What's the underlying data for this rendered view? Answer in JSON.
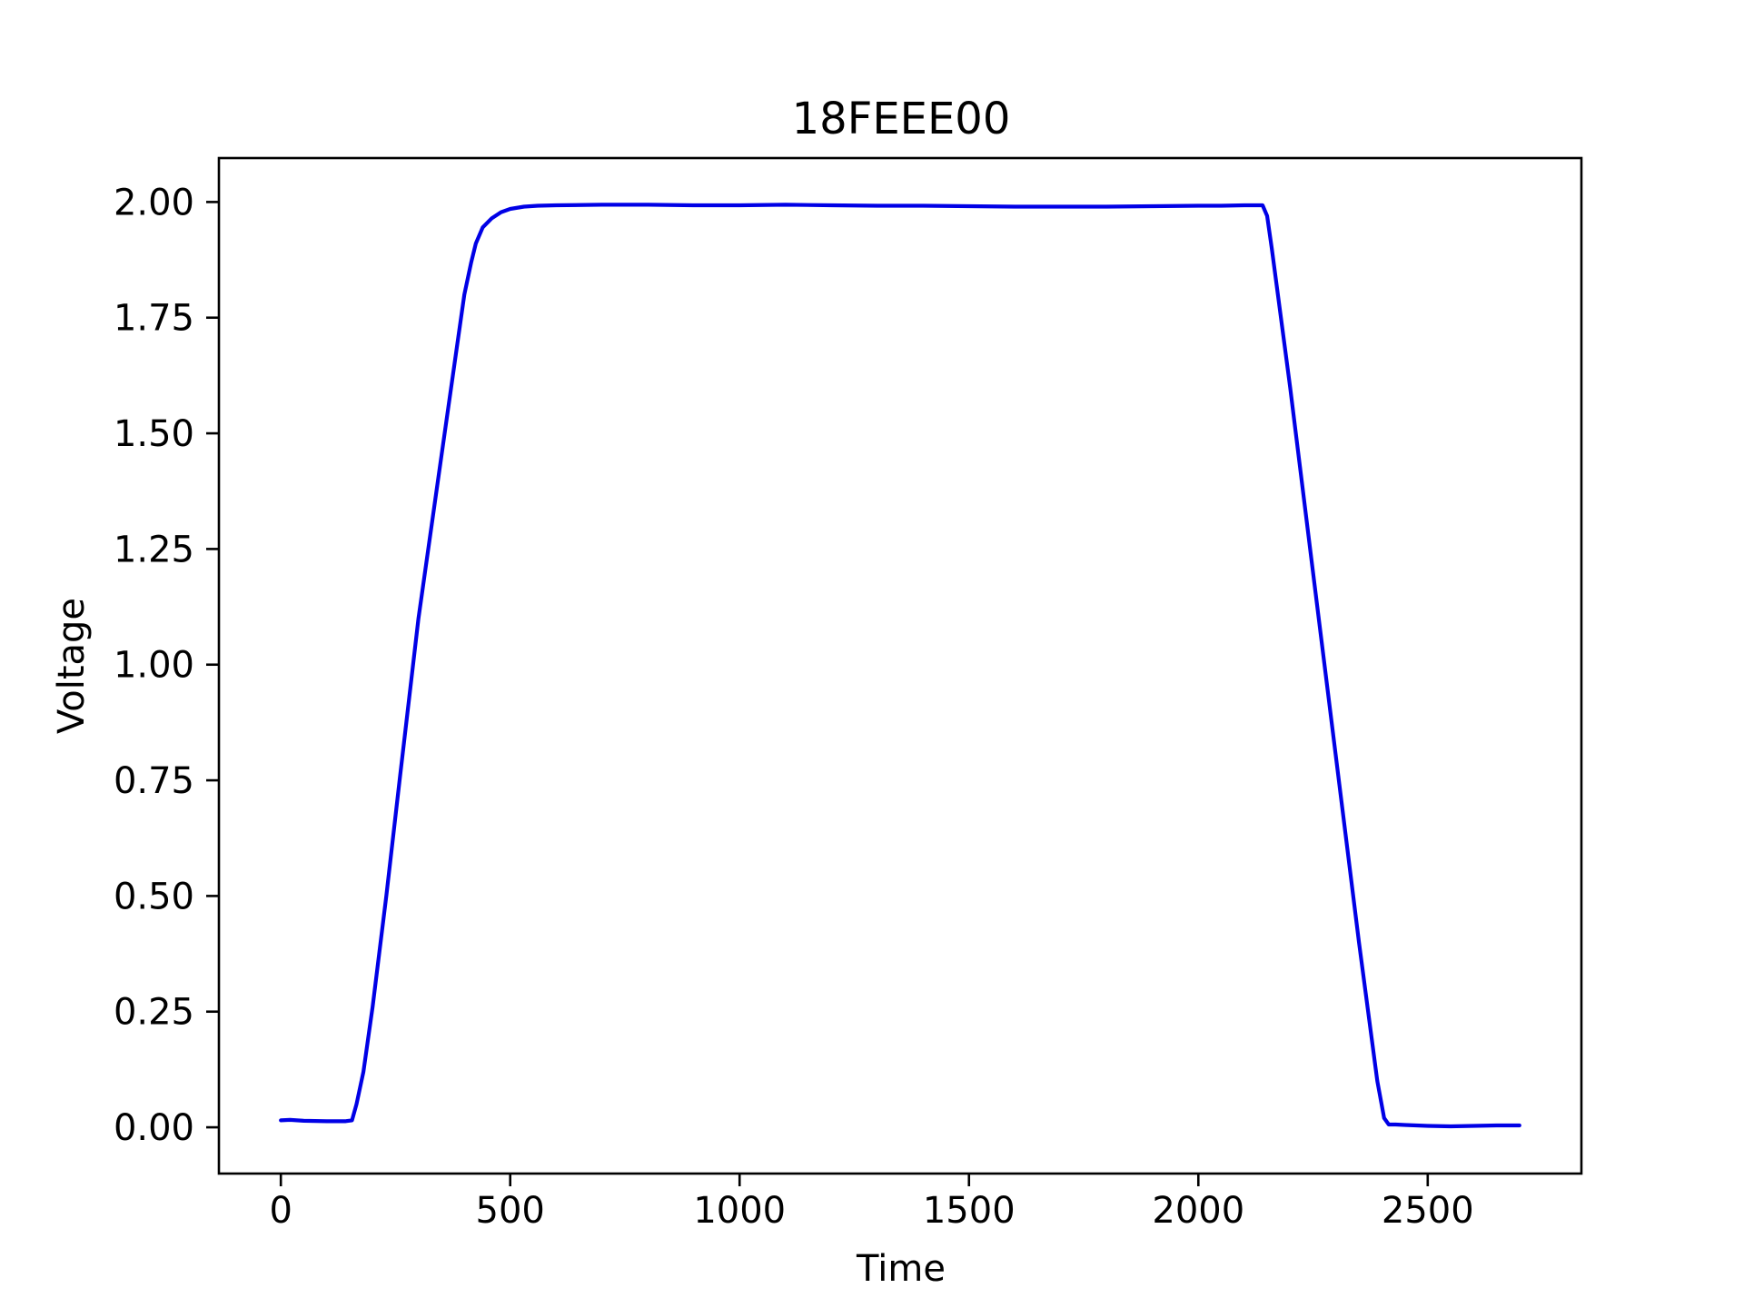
{
  "chart_data": {
    "type": "line",
    "title": "18FEEE00",
    "xlabel": "Time",
    "ylabel": "Voltage",
    "xlim": [
      -135,
      2835
    ],
    "ylim": [
      -0.1,
      2.095
    ],
    "xticks": [
      0,
      500,
      1000,
      1500,
      2000,
      2500
    ],
    "xtick_labels": [
      "0",
      "500",
      "1000",
      "1500",
      "2000",
      "2500"
    ],
    "yticks": [
      0,
      0.25,
      0.5,
      0.75,
      1.0,
      1.25,
      1.5,
      1.75,
      2.0
    ],
    "ytick_labels": [
      "0.00",
      "0.25",
      "0.50",
      "0.75",
      "1.00",
      "1.25",
      "1.50",
      "1.75",
      "2.00"
    ],
    "grid": false,
    "series": [
      {
        "color": "#0000e6",
        "x": [
          0,
          20,
          50,
          100,
          140,
          155,
          165,
          180,
          200,
          230,
          260,
          300,
          350,
          400,
          415,
          425,
          440,
          460,
          480,
          500,
          530,
          560,
          600,
          700,
          800,
          900,
          1000,
          1100,
          1200,
          1300,
          1400,
          1500,
          1600,
          1700,
          1800,
          1900,
          2000,
          2050,
          2100,
          2140,
          2150,
          2160,
          2200,
          2250,
          2300,
          2350,
          2390,
          2405,
          2415,
          2430,
          2450,
          2500,
          2550,
          2600,
          2650,
          2700
        ],
        "y": [
          0.015,
          0.016,
          0.014,
          0.013,
          0.013,
          0.015,
          0.05,
          0.12,
          0.26,
          0.5,
          0.76,
          1.1,
          1.45,
          1.8,
          1.87,
          1.91,
          1.945,
          1.965,
          1.978,
          1.985,
          1.99,
          1.992,
          1.993,
          1.994,
          1.994,
          1.993,
          1.993,
          1.994,
          1.993,
          1.992,
          1.992,
          1.991,
          1.99,
          1.99,
          1.99,
          1.991,
          1.992,
          1.992,
          1.993,
          1.993,
          1.97,
          1.9,
          1.6,
          1.2,
          0.8,
          0.4,
          0.1,
          0.02,
          0.006,
          0.006,
          0.005,
          0.003,
          0.002,
          0.003,
          0.004,
          0.004
        ]
      }
    ]
  }
}
